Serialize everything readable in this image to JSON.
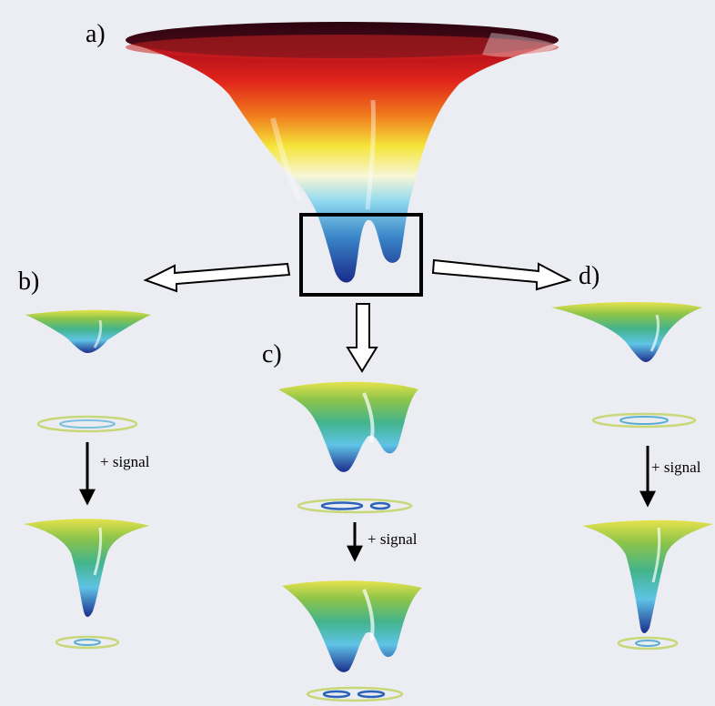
{
  "panels": {
    "a": {
      "label": "a)"
    },
    "b": {
      "label": "b)",
      "signal": "+ signal"
    },
    "c": {
      "label": "c)",
      "signal": "+ signal"
    },
    "d": {
      "label": "d)",
      "signal": "+ signal"
    }
  },
  "colors": {
    "background": "#ecedf2",
    "landscape_top": "#3a0612",
    "landscape_red": "#d61a1a",
    "landscape_yellow": "#f0e020",
    "landscape_cyan": "#8ed8ee",
    "landscape_blue": "#1e3a9a",
    "basin_green": "#7cc04a",
    "basin_yellow": "#e0e060",
    "contour_outer": "#c8d878",
    "contour_inner": "#3a86c8",
    "arrow_fill": "#ffffff",
    "arrow_stroke": "#000000"
  }
}
